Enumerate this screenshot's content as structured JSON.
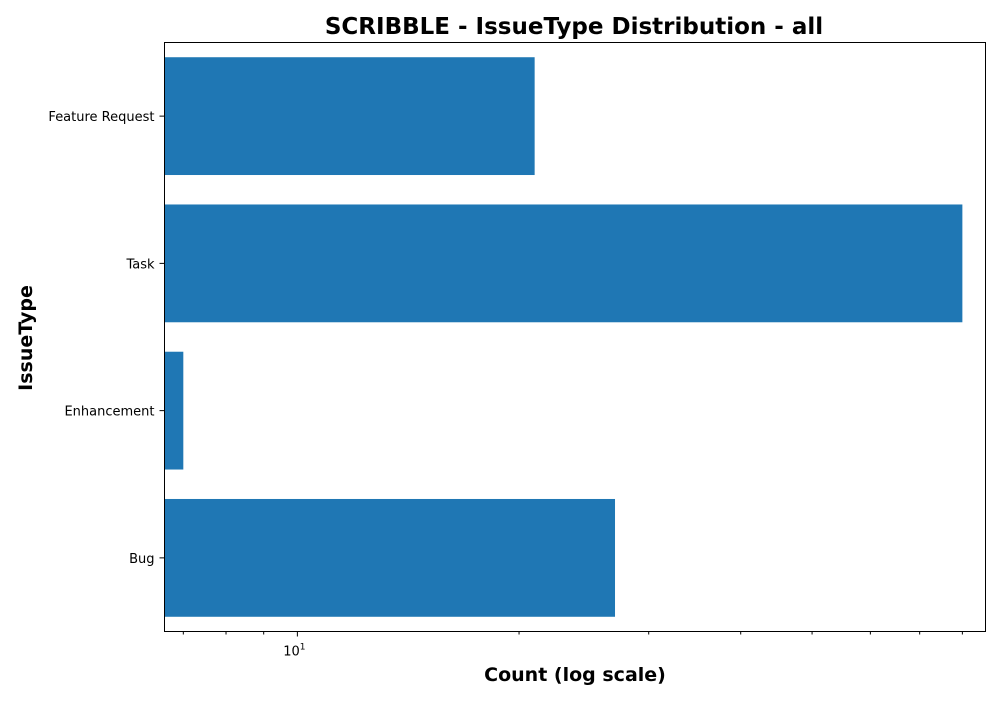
{
  "chart_data": {
    "type": "bar",
    "orientation": "horizontal",
    "title": "SCRIBBLE - IssueType Distribution - all",
    "xlabel": "Count (log scale)",
    "ylabel": "IssueType",
    "x_scale": "log",
    "xlim": [
      6.6,
      86
    ],
    "x_major_ticks": [
      {
        "value": 10,
        "base": "10",
        "exponent": "1"
      }
    ],
    "x_minor_ticks": [
      7,
      8,
      9,
      20,
      30,
      40,
      50,
      60,
      70,
      80
    ],
    "categories": [
      "Bug",
      "Enhancement",
      "Task",
      "Feature Request"
    ],
    "values": [
      27,
      7,
      80,
      21
    ],
    "bar_color": "#1f77b4",
    "grid": false,
    "legend": "none"
  }
}
